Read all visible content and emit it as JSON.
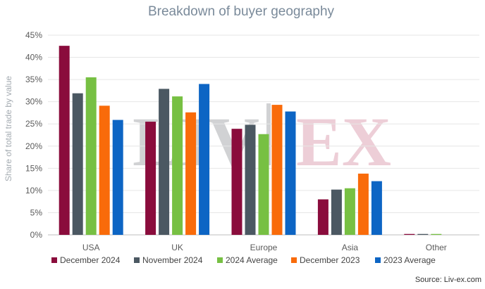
{
  "chart_data": {
    "type": "bar",
    "title": "Breakdown of buyer geography",
    "ylabel": "Share of total trade by value",
    "xlabel": "",
    "ylim": [
      0,
      45
    ],
    "yticks": [
      "0%",
      "5%",
      "10%",
      "15%",
      "20%",
      "25%",
      "30%",
      "35%",
      "40%",
      "45%"
    ],
    "categories": [
      "USA",
      "UK",
      "Europe",
      "Asia",
      "Other"
    ],
    "series": [
      {
        "name": "December 2024",
        "color": "#8a0c3c",
        "values": [
          42.6,
          25.5,
          23.9,
          8.0,
          0.2
        ]
      },
      {
        "name": "November 2024",
        "color": "#4b5862",
        "values": [
          31.9,
          32.9,
          24.8,
          10.2,
          0.2
        ]
      },
      {
        "name": "2024 Average",
        "color": "#77c043",
        "values": [
          35.5,
          31.2,
          22.7,
          10.5,
          0.2
        ]
      },
      {
        "name": "December 2023",
        "color": "#f96b0a",
        "values": [
          29.1,
          27.6,
          29.3,
          13.8,
          0.0
        ]
      },
      {
        "name": "2023 Average",
        "color": "#0d65c4",
        "values": [
          25.9,
          34.0,
          27.8,
          12.1,
          0.0
        ]
      }
    ],
    "grid": true,
    "legend_position": "bottom",
    "watermark": "LIV-EX",
    "source": "Source: Liv-ex.com"
  }
}
